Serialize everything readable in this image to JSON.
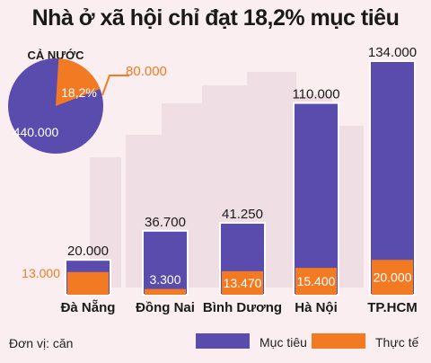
{
  "title": "Nhà ở xã hội chỉ đạt 18,2% mục tiêu",
  "pie": {
    "label": "CẢ NƯỚC",
    "target": 440000,
    "actual": 80000,
    "target_text": "440.000",
    "actual_text": "80.000",
    "percent_text": "18,2%"
  },
  "unit_text": "Đơn vị: căn",
  "colors": {
    "target": "#5a4cad",
    "actual": "#f27a23",
    "background": "#fbeef1",
    "skyline": "#e6d2d8"
  },
  "chart_data": {
    "type": "bar",
    "title": "Nhà ở xã hội chỉ đạt 18,2% mục tiêu",
    "categories": [
      "Đà Nẵng",
      "Đồng Nai",
      "Bình Dương",
      "Hà Nội",
      "TP.HCM"
    ],
    "series": [
      {
        "name": "Mục tiêu",
        "values": [
          20000,
          36700,
          41250,
          110000,
          134000
        ],
        "labels": [
          "20.000",
          "36.700",
          "41.250",
          "110.000",
          "134.000"
        ]
      },
      {
        "name": "Thực tế",
        "values": [
          13000,
          3300,
          13470,
          15400,
          20000
        ],
        "labels": [
          "13.000",
          "3.300",
          "13.470",
          "15.400",
          "20.000"
        ]
      }
    ],
    "xlabel": "",
    "ylabel": "",
    "ylim": [
      0,
      134000
    ],
    "grid": false,
    "legend": "bottom"
  }
}
